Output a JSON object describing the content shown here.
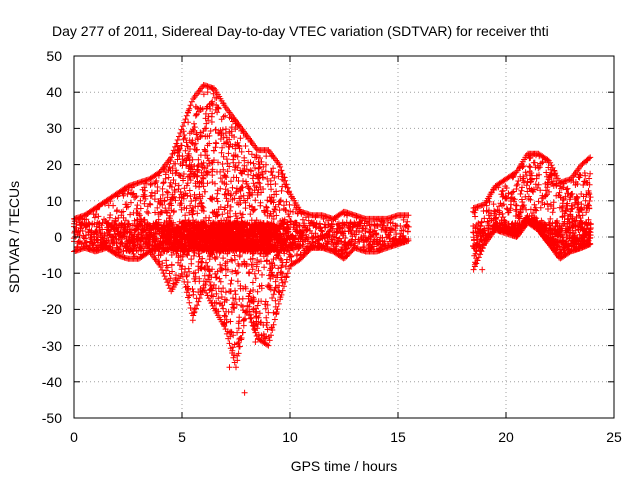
{
  "chart_data": {
    "type": "scatter",
    "title": "Day 277 of 2011, Sidereal Day-to-day VTEC variation (SDTVAR) for receiver thti",
    "xlabel": "GPS time / hours",
    "ylabel": "SDTVAR / TECUs",
    "xlim": [
      0,
      25
    ],
    "ylim": [
      -50,
      50
    ],
    "grid": true,
    "marker": "+",
    "x_ticks": [
      "0",
      "5",
      "10",
      "15",
      "20",
      "25"
    ],
    "y_ticks": [
      "-50",
      "-40",
      "-30",
      "-20",
      "-10",
      "0",
      "10",
      "20",
      "30",
      "40",
      "50"
    ],
    "series": [
      {
        "name": "SDTVAR",
        "color": "#ff0000",
        "envelope": {
          "x": [
            0.0,
            0.5,
            1.0,
            1.5,
            2.0,
            2.5,
            3.0,
            3.5,
            4.0,
            4.5,
            5.0,
            5.5,
            6.0,
            6.5,
            7.0,
            7.5,
            8.0,
            8.5,
            9.0,
            9.5,
            10.0,
            10.5,
            11.0,
            11.5,
            12.0,
            12.5,
            13.0,
            13.5,
            14.0,
            14.5,
            15.0,
            15.5
          ],
          "upper": [
            5,
            6,
            8,
            10,
            12,
            14,
            15,
            16,
            18,
            22,
            30,
            38,
            42,
            41,
            36,
            32,
            28,
            24,
            24,
            20,
            12,
            7,
            6,
            6,
            5,
            7,
            6,
            5,
            5,
            5,
            6,
            6
          ],
          "lower": [
            -4,
            -3,
            -4,
            -3,
            -5,
            -6,
            -6,
            -4,
            -8,
            -15,
            -10,
            -22,
            -14,
            -20,
            -25,
            -36,
            -20,
            -28,
            -30,
            -18,
            -8,
            -6,
            -3,
            -3,
            -4,
            -6,
            -3,
            -4,
            -4,
            -3,
            -2,
            -1
          ]
        },
        "envelope2": {
          "x": [
            18.5,
            19.0,
            19.5,
            20.0,
            20.5,
            21.0,
            21.5,
            22.0,
            22.5,
            23.0,
            23.5,
            23.9
          ],
          "upper": [
            8,
            9,
            14,
            16,
            18,
            23,
            23,
            21,
            15,
            16,
            20,
            22
          ],
          "lower": [
            -9,
            -2,
            2,
            1,
            0,
            4,
            2,
            -2,
            -6,
            -4,
            -3,
            -2
          ]
        },
        "outliers": [
          {
            "x": 7.9,
            "y": -43
          },
          {
            "x": 7.2,
            "y": -36
          },
          {
            "x": 5.5,
            "y": -23
          },
          {
            "x": 8.4,
            "y": -29
          },
          {
            "x": 18.9,
            "y": -9
          }
        ]
      }
    ]
  }
}
